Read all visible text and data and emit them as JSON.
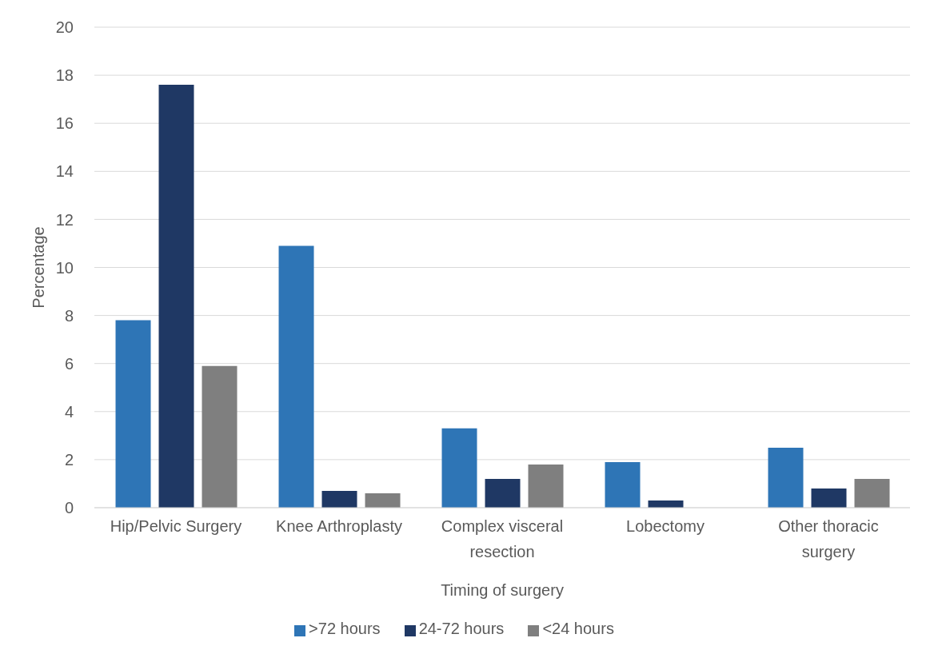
{
  "chart_data": {
    "type": "bar",
    "xlabel": "Timing of surgery",
    "ylabel": "Percentage",
    "categories": [
      "Hip/Pelvic Surgery",
      "Knee Arthroplasty",
      "Complex visceral resection",
      "Lobectomy",
      "Other thoracic surgery"
    ],
    "series": [
      {
        "name": ">72 hours",
        "color": "#2e75b6",
        "values": [
          7.8,
          10.9,
          3.3,
          1.9,
          2.5
        ]
      },
      {
        "name": "24-72 hours",
        "color": "#1f3864",
        "values": [
          17.6,
          0.7,
          1.2,
          0.3,
          0.8
        ]
      },
      {
        "name": "<24 hours",
        "color": "#7f7f7f",
        "values": [
          5.9,
          0.6,
          1.8,
          0,
          1.2
        ]
      }
    ],
    "ylim": [
      0,
      20
    ],
    "yticks": [
      0,
      2,
      4,
      6,
      8,
      10,
      12,
      14,
      16,
      18,
      20
    ],
    "grid": "y",
    "legend": "bottom"
  }
}
